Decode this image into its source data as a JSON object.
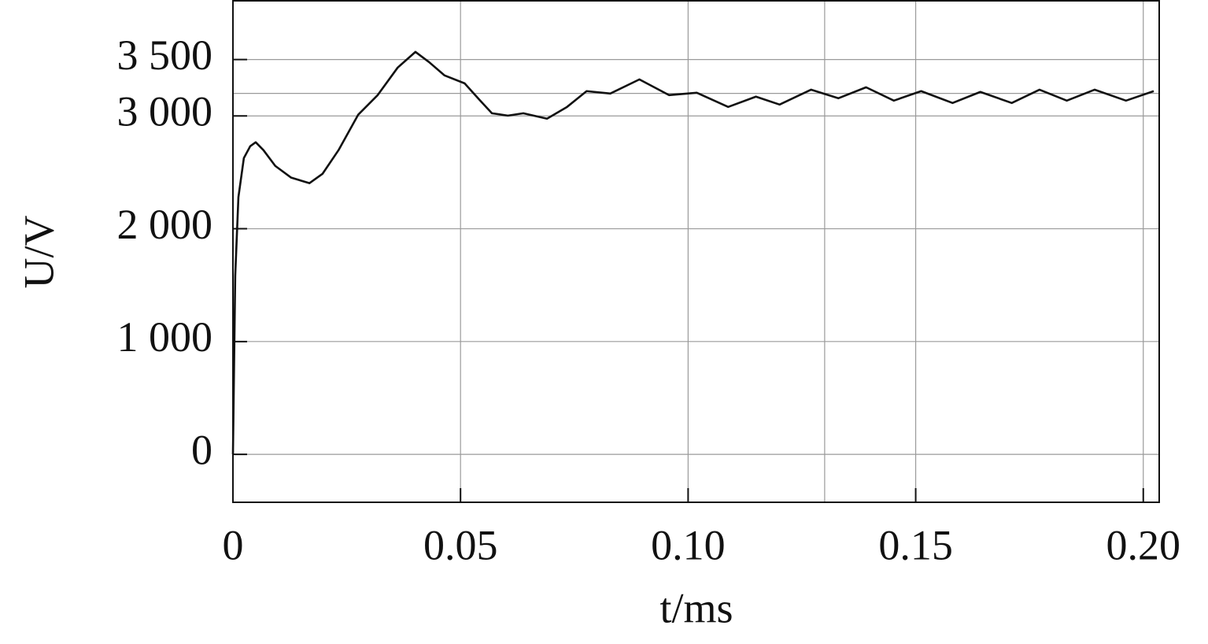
{
  "chart_data": {
    "type": "line",
    "x_label": "t/ms",
    "y_label": "U/V",
    "xlim": [
      0,
      0.2035
    ],
    "ylim": [
      -425,
      4021
    ],
    "xticks": [
      0,
      0.05,
      {
        "value": 0.1,
        "label": "0.10"
      },
      {
        "value": 0.15,
        "label": "0.15"
      },
      {
        "value": 0.2,
        "label": "0.20"
      }
    ],
    "yticks": [
      0,
      {
        "value": 1000,
        "label": "1 000"
      },
      {
        "value": 2000,
        "label": "2 000"
      },
      {
        "value": 3000,
        "label": "3 000"
      },
      {
        "value": 3500,
        "label": "3 500"
      }
    ],
    "x_reference_lines": [
      0.13
    ],
    "y_reference_lines": [
      3200
    ],
    "grid": true,
    "series": [
      {
        "color": "#111111",
        "x": [
          0,
          0.0005,
          0.0012,
          0.0024,
          0.0038,
          0.005,
          0.0067,
          0.0093,
          0.0128,
          0.0168,
          0.0197,
          0.0232,
          0.0275,
          0.0318,
          0.0362,
          0.0401,
          0.0431,
          0.0465,
          0.0509,
          0.054,
          0.0569,
          0.0604,
          0.0638,
          0.069,
          0.0734,
          0.0777,
          0.0829,
          0.0893,
          0.0958,
          0.1019,
          0.1088,
          0.1149,
          0.1201,
          0.127,
          0.133,
          0.1391,
          0.1452,
          0.1512,
          0.1581,
          0.1642,
          0.1711,
          0.1772,
          0.1832,
          0.1893,
          0.1962,
          0.2023
        ],
        "values": [
          0,
          1582,
          2279,
          2627,
          2732,
          2767,
          2697,
          2557,
          2453,
          2404,
          2488,
          2697,
          3010,
          3185,
          3429,
          3568,
          3477,
          3359,
          3289,
          3150,
          3024,
          3003,
          3024,
          2976,
          3080,
          3220,
          3199,
          3324,
          3185,
          3206,
          3080,
          3171,
          3101,
          3233,
          3157,
          3254,
          3136,
          3220,
          3115,
          3213,
          3115,
          3233,
          3136,
          3233,
          3136,
          3220
        ]
      }
    ]
  }
}
